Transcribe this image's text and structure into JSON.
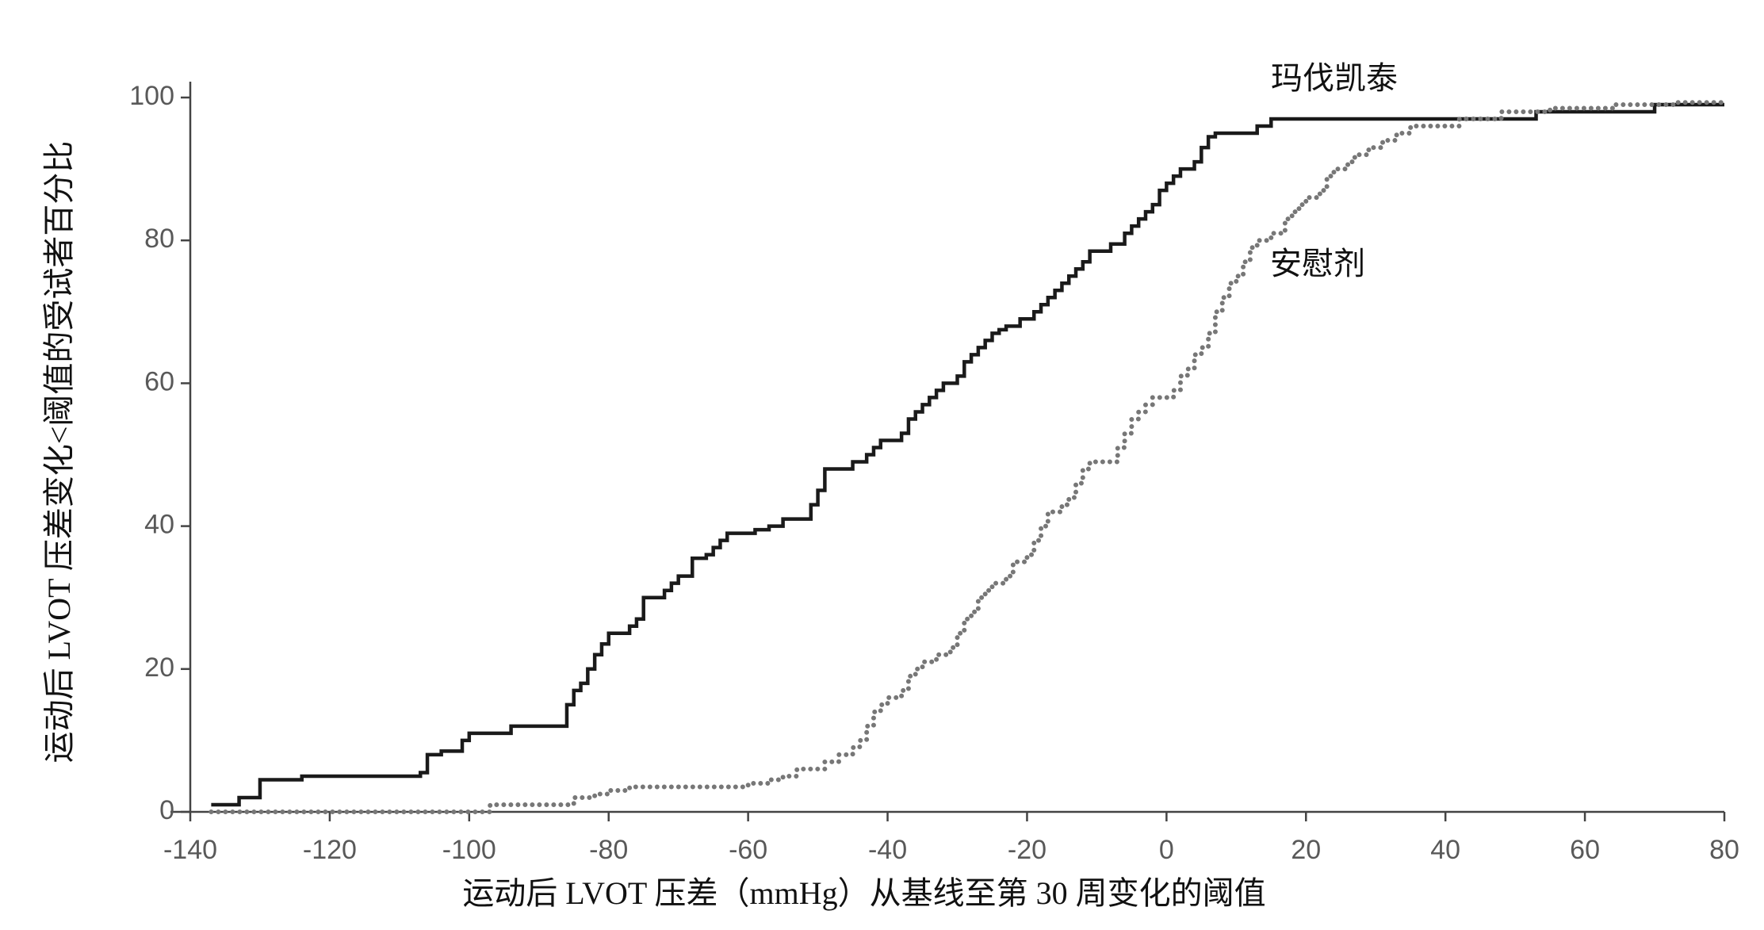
{
  "chart_data": {
    "type": "step",
    "xlabel": "运动后 LVOT 压差（mmHg）从基线至第 30 周变化的阈值",
    "ylabel": "运动后 LVOT 压差变化<阈值的受试者百分比",
    "xlim": [
      -140,
      80
    ],
    "xticks": [
      -140,
      -120,
      -100,
      -80,
      -60,
      -40,
      -20,
      0,
      20,
      40,
      60,
      80
    ],
    "ylim": [
      0,
      100
    ],
    "yticks": [
      0,
      20,
      40,
      60,
      80,
      100
    ],
    "series": [
      {
        "name": "玛伐凯泰",
        "color": "#1a1a1a",
        "style": "solid",
        "x": [
          -137,
          -133,
          -130,
          -124,
          -107,
          -106,
          -104,
          -101,
          -100,
          -94,
          -86,
          -85,
          -84,
          -83,
          -82,
          -81,
          -80,
          -77,
          -76,
          -75,
          -72,
          -71,
          -70,
          -68,
          -66,
          -65,
          -64,
          -63,
          -59,
          -57,
          -55,
          -51,
          -50,
          -49,
          -45,
          -43,
          -42,
          -41,
          -38,
          -37,
          -36,
          -35,
          -34,
          -33,
          -32,
          -30,
          -29,
          -28,
          -27,
          -26,
          -25,
          -24,
          -23,
          -21,
          -19,
          -18,
          -17,
          -16,
          -15,
          -14,
          -13,
          -12,
          -11,
          -8,
          -6,
          -5,
          -4,
          -3,
          -2,
          -1,
          0,
          1,
          2,
          4,
          5,
          6,
          7,
          13,
          15,
          53,
          70,
          80
        ],
        "values": [
          1,
          2,
          4.5,
          5,
          5.5,
          8,
          8.5,
          10,
          11,
          12,
          15,
          17,
          18,
          20,
          22,
          23.5,
          25,
          26,
          27,
          30,
          31,
          32,
          33,
          35.5,
          36,
          37,
          38,
          39,
          39.5,
          40,
          41,
          43,
          45,
          48,
          49,
          50,
          51,
          52,
          53,
          55,
          56,
          57,
          58,
          59,
          60,
          61,
          63,
          64,
          65,
          66,
          67,
          67.5,
          68,
          69,
          70,
          71,
          72,
          73,
          74,
          75,
          76,
          77,
          78.5,
          79.5,
          81,
          82,
          83,
          84,
          85,
          87,
          88,
          89,
          90,
          91,
          93,
          94.5,
          95,
          96,
          97,
          98,
          99,
          99
        ]
      },
      {
        "name": "安慰剂",
        "color": "#777777",
        "style": "dotted",
        "x": [
          -137,
          -97,
          -85,
          -82,
          -80,
          -77,
          -60,
          -57,
          -55,
          -53,
          -49,
          -47,
          -45,
          -44,
          -43,
          -42,
          -41,
          -40,
          -38,
          -37,
          -36,
          -35,
          -33,
          -31,
          -30,
          -29,
          -28,
          -27,
          -26,
          -25,
          -23,
          -22,
          -20,
          -19,
          -18,
          -17,
          -15,
          -14,
          -13,
          -12,
          -11,
          -7,
          -6,
          -5,
          -4,
          -3,
          -2,
          1,
          2,
          3,
          4,
          5,
          6,
          7,
          8,
          9,
          10,
          11,
          12,
          13,
          15,
          17,
          18,
          19,
          20,
          22,
          23,
          24,
          26,
          27,
          29,
          31,
          33,
          35,
          42,
          48,
          55,
          64,
          73,
          80
        ],
        "values": [
          0,
          1,
          2,
          2.5,
          3,
          3.5,
          4,
          4.5,
          5,
          6,
          7,
          8,
          9,
          10,
          12,
          14,
          15,
          16,
          17,
          19,
          20,
          21,
          22,
          23,
          25,
          27,
          28,
          30,
          31,
          32,
          33,
          35,
          36,
          38,
          40,
          42,
          43,
          44,
          46,
          48,
          49,
          51,
          53,
          55,
          56,
          57,
          58,
          59,
          61,
          62,
          64,
          65,
          67,
          70,
          72,
          74,
          75,
          77,
          79,
          80,
          81,
          83,
          84,
          85,
          86,
          87,
          89,
          90,
          91,
          92,
          93,
          94,
          95,
          96,
          97,
          98,
          98.5,
          99,
          99.3,
          99.3
        ]
      }
    ]
  }
}
